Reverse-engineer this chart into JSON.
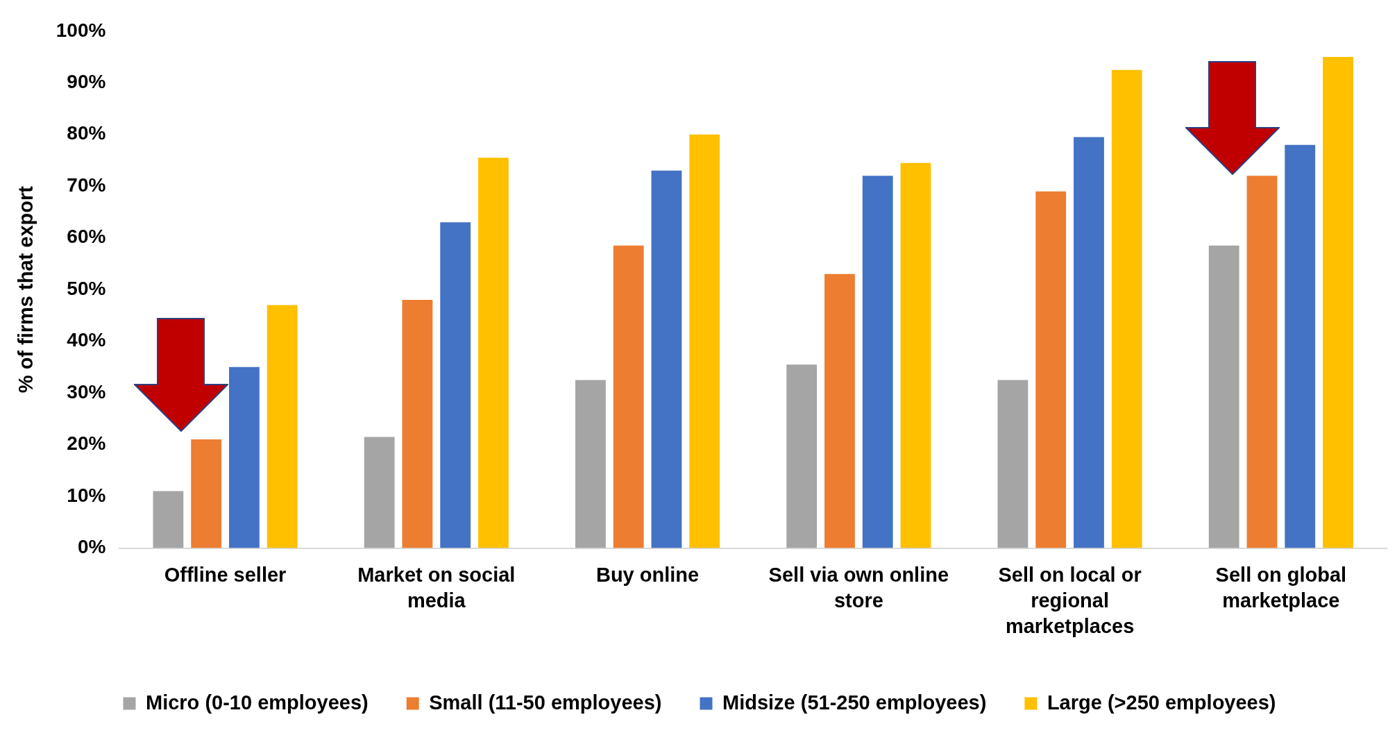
{
  "chart_data": {
    "type": "bar",
    "ylabel": "% of firms that export",
    "categories": [
      "Offline seller",
      "Market on social media",
      "Buy online",
      "Sell via own online store",
      "Sell on local or regional marketplaces",
      "Sell on global marketplace"
    ],
    "series": [
      {
        "name": "Micro (0-10 employees)",
        "color": "#a5a5a5",
        "values": [
          11,
          21.5,
          32.5,
          35.5,
          32.5,
          58.5
        ]
      },
      {
        "name": "Small (11-50 employees)",
        "color": "#ed7d31",
        "values": [
          21,
          48,
          58.5,
          53,
          69,
          72
        ]
      },
      {
        "name": "Midsize (51-250 employees)",
        "color": "#4472c4",
        "values": [
          35,
          63,
          73,
          72,
          79.5,
          78
        ]
      },
      {
        "name": "Large (>250 employees)",
        "color": "#ffc000",
        "values": [
          47,
          75.5,
          80,
          74.5,
          92.5,
          95
        ]
      }
    ],
    "ylim": [
      0,
      100
    ],
    "yticks": [
      {
        "value": 0,
        "label": "0%"
      },
      {
        "value": 10,
        "label": "10%"
      },
      {
        "value": 20,
        "label": "20%"
      },
      {
        "value": 30,
        "label": "30%"
      },
      {
        "value": 40,
        "label": "40%"
      },
      {
        "value": 50,
        "label": "50%"
      },
      {
        "value": 60,
        "label": "60%"
      },
      {
        "value": 70,
        "label": "70%"
      },
      {
        "value": 80,
        "label": "80%"
      },
      {
        "value": 90,
        "label": "90%"
      },
      {
        "value": 100,
        "label": "100%"
      }
    ],
    "grid": false,
    "legend": "bottom"
  }
}
